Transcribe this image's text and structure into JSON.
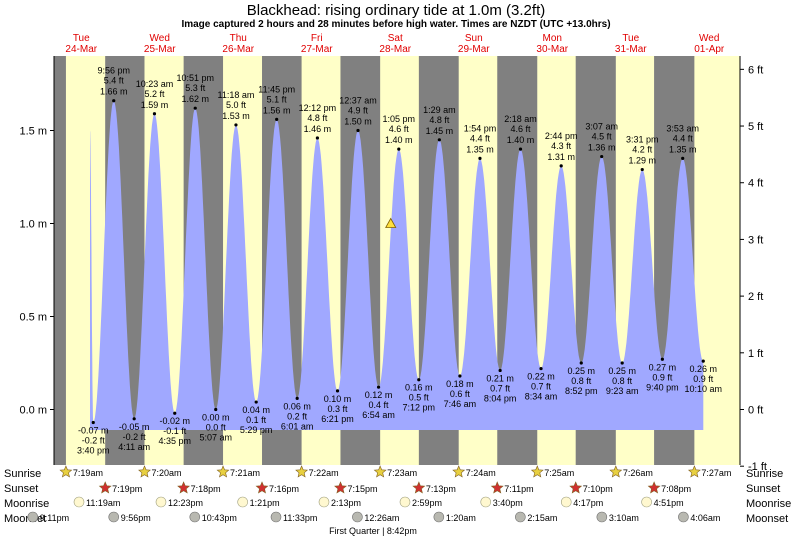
{
  "title": "Blackhead: rising  ordinary tide at 1.0m (3.2ft)",
  "subtitle": "Image captured 2 hours and 28 minutes before high water. Times are NZDT (UTC +13.0hrs)",
  "rows": {
    "sunrise": "Sunrise",
    "sunset": "Sunset",
    "moonrise": "Moonrise",
    "moonset": "Moonset"
  },
  "moon_phase_note": "First Quarter | 8:42pm",
  "colors": {
    "water": "#a0a8ff",
    "day": "#ffffc8",
    "night": "#808080",
    "day_label": "#e00000",
    "sun_icon": "#e8d040",
    "sunset_icon": "#d03030",
    "moonrise_icon": "#fff8d0",
    "moonset_icon": "#b8b8b0"
  },
  "current": {
    "height_m": 1.0,
    "state": "rising"
  },
  "chart_data": {
    "type": "area",
    "title": "Blackhead: rising  ordinary tide at 1.0m (3.2ft)",
    "y_left_unit": "m",
    "y_right_unit": "ft",
    "ylim_m": [
      -0.3,
      1.95
    ],
    "y_left_ticks": [
      "0.0 m",
      "0.5 m",
      "1.0 m",
      "1.5 m"
    ],
    "y_left_tick_values": [
      0.0,
      0.5,
      1.0,
      1.5
    ],
    "y_right_ticks": [
      "-1 ft",
      "0 ft",
      "1 ft",
      "2 ft",
      "3 ft",
      "4 ft",
      "5 ft",
      "6 ft"
    ],
    "y_right_tick_values": [
      -1,
      0,
      1,
      2,
      3,
      4,
      5,
      6
    ],
    "days": [
      {
        "dow": "Tue",
        "date": "24-Mar"
      },
      {
        "dow": "Wed",
        "date": "25-Mar"
      },
      {
        "dow": "Thu",
        "date": "26-Mar"
      },
      {
        "dow": "Fri",
        "date": "27-Mar"
      },
      {
        "dow": "Sat",
        "date": "28-Mar"
      },
      {
        "dow": "Sun",
        "date": "29-Mar"
      },
      {
        "dow": "Mon",
        "date": "30-Mar"
      },
      {
        "dow": "Tue",
        "date": "31-Mar"
      },
      {
        "dow": "Wed",
        "date": "01-Apr"
      }
    ],
    "series": [
      {
        "points": [
          {
            "t": "2026-03-24T15:40",
            "time": "3:40 pm",
            "m": -0.07,
            "m_label": "-0.07 m",
            "ft_label": "-0.2 ft",
            "type": "low"
          },
          {
            "t": "2026-03-24T21:56",
            "time": "9:56 pm",
            "m": 1.66,
            "m_label": "1.66 m",
            "ft_label": "5.4 ft",
            "type": "high"
          },
          {
            "t": "2026-03-25T04:11",
            "time": "4:11 am",
            "m": -0.05,
            "m_label": "-0.05 m",
            "ft_label": "-0.2 ft",
            "type": "low"
          },
          {
            "t": "2026-03-25T10:23",
            "time": "10:23 am",
            "m": 1.59,
            "m_label": "1.59 m",
            "ft_label": "5.2 ft",
            "type": "high"
          },
          {
            "t": "2026-03-25T16:35",
            "time": "4:35 pm",
            "m": -0.02,
            "m_label": "-0.02 m",
            "ft_label": "-0.1 ft",
            "type": "low"
          },
          {
            "t": "2026-03-25T22:51",
            "time": "10:51 pm",
            "m": 1.62,
            "m_label": "1.62 m",
            "ft_label": "5.3 ft",
            "type": "high"
          },
          {
            "t": "2026-03-26T05:07",
            "time": "5:07 am",
            "m": 0.0,
            "m_label": "0.00 m",
            "ft_label": "0.0 ft",
            "type": "low"
          },
          {
            "t": "2026-03-26T11:18",
            "time": "11:18 am",
            "m": 1.53,
            "m_label": "1.53 m",
            "ft_label": "5.0 ft",
            "type": "high"
          },
          {
            "t": "2026-03-26T17:29",
            "time": "5:29 pm",
            "m": 0.04,
            "m_label": "0.04 m",
            "ft_label": "0.1 ft",
            "type": "low"
          },
          {
            "t": "2026-03-26T23:45",
            "time": "11:45 pm",
            "m": 1.56,
            "m_label": "1.56 m",
            "ft_label": "5.1 ft",
            "type": "high"
          },
          {
            "t": "2026-03-27T06:01",
            "time": "6:01 am",
            "m": 0.06,
            "m_label": "0.06 m",
            "ft_label": "0.2 ft",
            "type": "low"
          },
          {
            "t": "2026-03-27T12:12",
            "time": "12:12 pm",
            "m": 1.46,
            "m_label": "1.46 m",
            "ft_label": "4.8 ft",
            "type": "high"
          },
          {
            "t": "2026-03-27T18:21",
            "time": "6:21 pm",
            "m": 0.1,
            "m_label": "0.10 m",
            "ft_label": "0.3 ft",
            "type": "low"
          },
          {
            "t": "2026-03-28T00:37",
            "time": "12:37 am",
            "m": 1.5,
            "m_label": "1.50 m",
            "ft_label": "4.9 ft",
            "type": "high"
          },
          {
            "t": "2026-03-28T06:54",
            "time": "6:54 am",
            "m": 0.12,
            "m_label": "0.12 m",
            "ft_label": "0.4 ft",
            "type": "low"
          },
          {
            "t": "2026-03-28T13:05",
            "time": "1:05 pm",
            "m": 1.4,
            "m_label": "1.40 m",
            "ft_label": "4.6 ft",
            "type": "high"
          },
          {
            "t": "2026-03-28T19:12",
            "time": "7:12 pm",
            "m": 0.16,
            "m_label": "0.16 m",
            "ft_label": "0.5 ft",
            "type": "low"
          },
          {
            "t": "2026-03-29T01:29",
            "time": "1:29 am",
            "m": 1.45,
            "m_label": "1.45 m",
            "ft_label": "4.8 ft",
            "type": "high"
          },
          {
            "t": "2026-03-29T07:46",
            "time": "7:46 am",
            "m": 0.18,
            "m_label": "0.18 m",
            "ft_label": "0.6 ft",
            "type": "low"
          },
          {
            "t": "2026-03-29T13:54",
            "time": "1:54 pm",
            "m": 1.35,
            "m_label": "1.35 m",
            "ft_label": "4.4 ft",
            "type": "high"
          },
          {
            "t": "2026-03-29T20:04",
            "time": "8:04 pm",
            "m": 0.21,
            "m_label": "0.21 m",
            "ft_label": "0.7 ft",
            "type": "low"
          },
          {
            "t": "2026-03-30T02:18",
            "time": "2:18 am",
            "m": 1.4,
            "m_label": "1.40 m",
            "ft_label": "4.6 ft",
            "type": "high"
          },
          {
            "t": "2026-03-30T08:34",
            "time": "8:34 am",
            "m": 0.22,
            "m_label": "0.22 m",
            "ft_label": "0.7 ft",
            "type": "low"
          },
          {
            "t": "2026-03-30T14:44",
            "time": "2:44 pm",
            "m": 1.31,
            "m_label": "1.31 m",
            "ft_label": "4.3 ft",
            "type": "high"
          },
          {
            "t": "2026-03-30T20:52",
            "time": "8:52 pm",
            "m": 0.25,
            "m_label": "0.25 m",
            "ft_label": "0.8 ft",
            "type": "low"
          },
          {
            "t": "2026-03-31T03:07",
            "time": "3:07 am",
            "m": 1.36,
            "m_label": "1.36 m",
            "ft_label": "4.5 ft",
            "type": "high"
          },
          {
            "t": "2026-03-31T09:23",
            "time": "9:23 am",
            "m": 0.25,
            "m_label": "0.25 m",
            "ft_label": "0.8 ft",
            "type": "low"
          },
          {
            "t": "2026-03-31T15:31",
            "time": "3:31 pm",
            "m": 1.29,
            "m_label": "1.29 m",
            "ft_label": "4.2 ft",
            "type": "high"
          },
          {
            "t": "2026-03-31T21:40",
            "time": "9:40 pm",
            "m": 0.27,
            "m_label": "0.27 m",
            "ft_label": "0.9 ft",
            "type": "low"
          },
          {
            "t": "2026-04-01T03:53",
            "time": "3:53 am",
            "m": 1.35,
            "m_label": "1.35 m",
            "ft_label": "4.4 ft",
            "type": "high"
          },
          {
            "t": "2026-04-01T10:10",
            "time": "10:10 am",
            "m": 0.26,
            "m_label": "0.26 m",
            "ft_label": "0.9 ft",
            "type": "low"
          }
        ]
      }
    ],
    "sunrise": [
      {
        "t": "2026-03-24T07:19",
        "label": "7:19am"
      },
      {
        "t": "2026-03-25T07:20",
        "label": "7:20am"
      },
      {
        "t": "2026-03-26T07:21",
        "label": "7:21am"
      },
      {
        "t": "2026-03-27T07:22",
        "label": "7:22am"
      },
      {
        "t": "2026-03-28T07:23",
        "label": "7:23am"
      },
      {
        "t": "2026-03-29T07:24",
        "label": "7:24am"
      },
      {
        "t": "2026-03-30T07:25",
        "label": "7:25am"
      },
      {
        "t": "2026-03-31T07:26",
        "label": "7:26am"
      },
      {
        "t": "2026-04-01T07:27",
        "label": "7:27am"
      }
    ],
    "sunset": [
      {
        "t": "2026-03-24T19:19",
        "label": "7:19pm"
      },
      {
        "t": "2026-03-25T19:18",
        "label": "7:18pm"
      },
      {
        "t": "2026-03-26T19:16",
        "label": "7:16pm"
      },
      {
        "t": "2026-03-27T19:15",
        "label": "7:15pm"
      },
      {
        "t": "2026-03-28T19:13",
        "label": "7:13pm"
      },
      {
        "t": "2026-03-29T19:11",
        "label": "7:11pm"
      },
      {
        "t": "2026-03-30T19:10",
        "label": "7:10pm"
      },
      {
        "t": "2026-03-31T19:08",
        "label": "7:08pm"
      }
    ],
    "moonrise": [
      {
        "t": "2026-03-24T11:19",
        "label": "11:19am"
      },
      {
        "t": "2026-03-25T12:23",
        "label": "12:23pm"
      },
      {
        "t": "2026-03-26T13:21",
        "label": "1:21pm"
      },
      {
        "t": "2026-03-27T14:13",
        "label": "2:13pm"
      },
      {
        "t": "2026-03-28T14:59",
        "label": "2:59pm"
      },
      {
        "t": "2026-03-29T15:40",
        "label": "3:40pm"
      },
      {
        "t": "2026-03-30T16:17",
        "label": "4:17pm"
      },
      {
        "t": "2026-03-31T16:51",
        "label": "4:51pm"
      }
    ],
    "moonset": [
      {
        "t": "2026-03-23T21:11",
        "label": "9:11pm"
      },
      {
        "t": "2026-03-24T21:56",
        "label": "9:56pm"
      },
      {
        "t": "2026-03-25T22:43",
        "label": "10:43pm"
      },
      {
        "t": "2026-03-26T23:33",
        "label": "11:33pm"
      },
      {
        "t": "2026-03-28T00:26",
        "label": "12:26am"
      },
      {
        "t": "2026-03-29T01:20",
        "label": "1:20am"
      },
      {
        "t": "2026-03-30T02:15",
        "label": "2:15am"
      },
      {
        "t": "2026-03-31T03:10",
        "label": "3:10am"
      },
      {
        "t": "2026-04-01T04:06",
        "label": "4:06am"
      }
    ]
  }
}
